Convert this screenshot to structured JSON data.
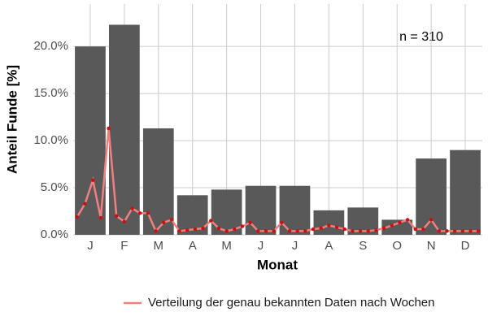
{
  "chart_data": {
    "type": "bar",
    "x_label": "Monat",
    "y_label": "Anteil Funde [%]",
    "annotation": "n = 310",
    "categories": [
      "J",
      "F",
      "M",
      "A",
      "M",
      "J",
      "J",
      "A",
      "S",
      "O",
      "N",
      "D"
    ],
    "values": [
      20.0,
      22.3,
      11.3,
      4.2,
      4.8,
      5.2,
      5.2,
      2.6,
      2.9,
      1.6,
      8.1,
      9.0
    ],
    "color": "#595959",
    "ylim": [
      0,
      24.5
    ],
    "yticks": [
      {
        "value": 0,
        "label": "0.0%"
      },
      {
        "value": 5,
        "label": "5.0%"
      },
      {
        "value": 10,
        "label": "10.0%"
      },
      {
        "value": 15,
        "label": "15.0%"
      },
      {
        "value": 20,
        "label": "20.0%"
      }
    ],
    "grid": true,
    "legend_position": "bottom",
    "line": {
      "name": "Verteilung der genau bekannten Daten nach Wochen",
      "color": "#f08080",
      "point_color": "#cc1010",
      "xlim": [
        0.5,
        52.5
      ],
      "x": [
        1,
        2,
        3,
        4,
        5,
        6,
        7,
        8,
        9,
        10,
        11,
        12,
        13,
        14,
        15,
        16,
        17,
        18,
        19,
        20,
        21,
        22,
        23,
        24,
        25,
        26,
        27,
        28,
        29,
        30,
        31,
        32,
        33,
        34,
        35,
        36,
        37,
        38,
        39,
        40,
        41,
        42,
        43,
        44,
        45,
        46,
        47,
        48,
        49,
        50,
        51,
        52
      ],
      "values": [
        1.9,
        3.3,
        5.8,
        1.8,
        11.3,
        2.0,
        1.4,
        2.8,
        2.3,
        2.3,
        0.4,
        1.3,
        1.6,
        0.4,
        0.5,
        0.6,
        0.7,
        1.5,
        0.7,
        0.4,
        0.6,
        0.9,
        1.3,
        0.4,
        0.4,
        0.4,
        1.3,
        0.4,
        0.4,
        0.4,
        0.6,
        0.7,
        1.0,
        0.8,
        0.6,
        0.4,
        0.4,
        0.4,
        0.5,
        0.7,
        1.0,
        1.3,
        1.6,
        0.6,
        0.6,
        1.6,
        0.4,
        0.4,
        0.4,
        0.4,
        0.4,
        0.4
      ]
    }
  }
}
